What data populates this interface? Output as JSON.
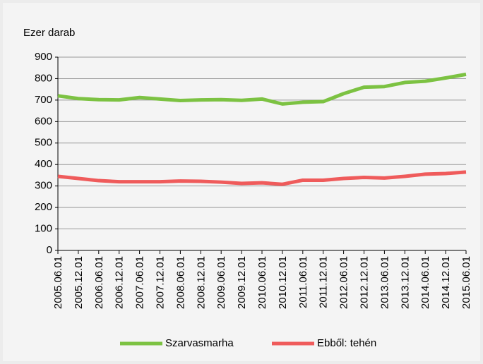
{
  "chart_data": {
    "type": "line",
    "y_axis_label": "Ezer darab",
    "categories": [
      "2005.06.01",
      "2005.12.01",
      "2006.06.01",
      "2006.12.01",
      "2007.06.01",
      "2007.12.01",
      "2008.06.01",
      "2008.12.01",
      "2009.06.01",
      "2009.12.01",
      "2010.06.01",
      "2010.12.01",
      "2011.06.01",
      "2011.12.01",
      "2012.06.01",
      "2012.12.01",
      "2013.06.01",
      "2013.12.01",
      "2014.06.01",
      "2014.12.01",
      "2015.06.01"
    ],
    "series": [
      {
        "name": "Szarvasmarha",
        "color": "#7cc242",
        "values": [
          720,
          707,
          702,
          701,
          712,
          705,
          698,
          701,
          702,
          699,
          705,
          682,
          690,
          693,
          730,
          760,
          763,
          782,
          788,
          803,
          820
        ]
      },
      {
        "name": "Ebből: tehén",
        "color": "#ef5b5b",
        "values": [
          345,
          335,
          325,
          320,
          320,
          320,
          323,
          322,
          318,
          312,
          315,
          308,
          327,
          327,
          335,
          340,
          337,
          345,
          355,
          358,
          365
        ]
      }
    ],
    "ylim": [
      0,
      900
    ],
    "yticks": [
      0,
      100,
      200,
      300,
      400,
      500,
      600,
      700,
      800,
      900
    ],
    "grid": true,
    "legend": "bottom"
  }
}
